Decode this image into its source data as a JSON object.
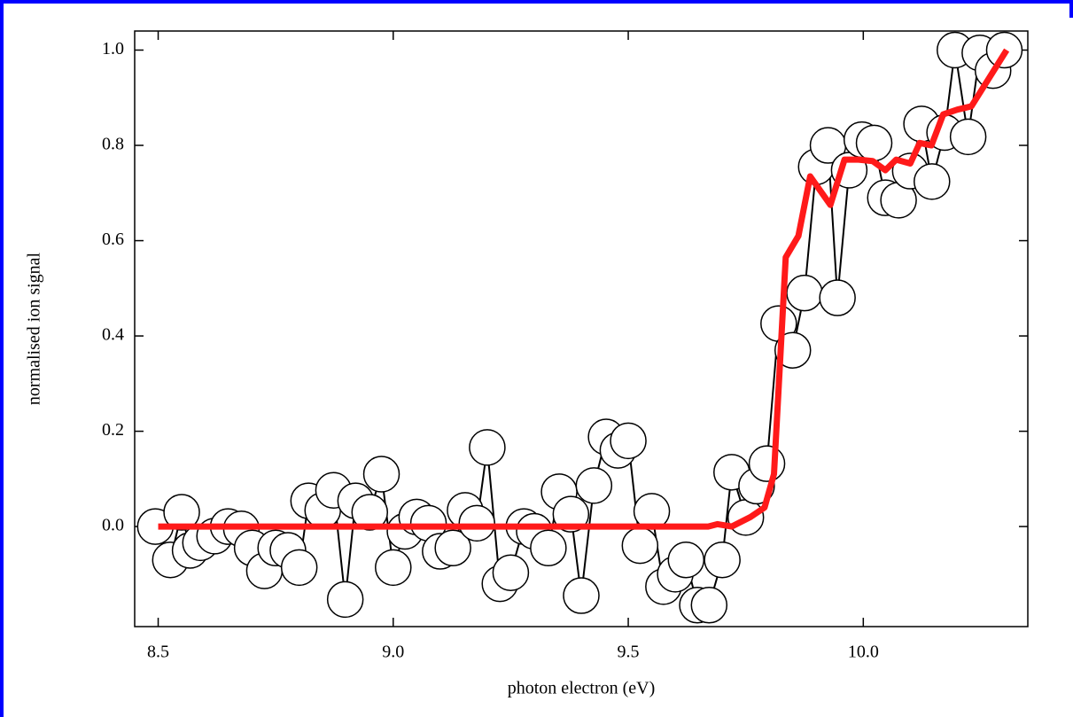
{
  "chart_data": {
    "type": "line",
    "xlabel": "photon electron (eV)",
    "ylabel": "normalised ion signal",
    "xlim": [
      8.45,
      10.35
    ],
    "ylim": [
      -0.21,
      1.04
    ],
    "xticks": [
      8.5,
      {
        "value": 9,
        "label": "9.0"
      },
      9.5,
      {
        "value": 10,
        "label": "10.0"
      }
    ],
    "yticks": [
      {
        "value": 0,
        "label": "0.0"
      },
      0.2,
      0.4,
      0.6,
      0.8,
      {
        "value": 1,
        "label": "1.0"
      }
    ],
    "series": [
      {
        "color": "#000000",
        "marker": "circle",
        "x": [
          8.494,
          8.526,
          8.55,
          8.568,
          8.59,
          8.62,
          8.649,
          8.677,
          8.7,
          8.726,
          8.75,
          8.776,
          8.8,
          8.82,
          8.85,
          8.873,
          8.898,
          8.92,
          8.95,
          8.975,
          9.0,
          9.025,
          9.05,
          9.075,
          9.1,
          9.127,
          9.153,
          9.178,
          9.2,
          9.227,
          9.25,
          9.278,
          9.3,
          9.33,
          9.353,
          9.378,
          9.4,
          9.427,
          9.453,
          9.478,
          9.5,
          9.525,
          9.55,
          9.575,
          9.6,
          9.623,
          9.647,
          9.672,
          9.7,
          9.72,
          9.75,
          9.773,
          9.795,
          9.82,
          9.85,
          9.875,
          9.9,
          9.925,
          9.945,
          9.97,
          9.997,
          10.023,
          10.047,
          10.075,
          10.1,
          10.124,
          10.146,
          10.173,
          10.195,
          10.223,
          10.248,
          10.276,
          10.3
        ],
        "values": [
          0.0,
          -0.07,
          0.03,
          -0.05,
          -0.034,
          -0.02,
          0.0,
          -0.005,
          -0.045,
          -0.093,
          -0.045,
          -0.05,
          -0.086,
          0.054,
          0.034,
          0.076,
          -0.153,
          0.054,
          0.03,
          0.11,
          -0.086,
          -0.01,
          0.02,
          0.007,
          -0.052,
          -0.045,
          0.034,
          0.007,
          0.166,
          -0.12,
          -0.097,
          0.0,
          -0.01,
          -0.045,
          0.073,
          0.026,
          -0.145,
          0.086,
          0.188,
          0.16,
          0.18,
          -0.04,
          0.032,
          -0.126,
          -0.1,
          -0.07,
          -0.165,
          -0.165,
          -0.07,
          0.114,
          0.019,
          0.085,
          0.132,
          0.426,
          0.37,
          0.49,
          0.755,
          0.8,
          0.48,
          0.748,
          0.812,
          0.805,
          0.69,
          0.685,
          0.746,
          0.845,
          0.724,
          0.827,
          1.0,
          0.818,
          0.994,
          0.957,
          1.0
        ]
      },
      {
        "color": "#ff1a1a",
        "x": [
          8.5,
          9.67,
          9.69,
          9.72,
          9.76,
          9.79,
          9.81,
          9.835,
          9.862,
          9.887,
          9.93,
          9.96,
          9.99,
          10.02,
          10.047,
          10.07,
          10.1,
          10.12,
          10.145,
          10.17,
          10.2,
          10.23,
          10.305
        ],
        "values": [
          0,
          0,
          0.005,
          0,
          0.02,
          0.04,
          0.11,
          0.565,
          0.61,
          0.735,
          0.675,
          0.77,
          0.77,
          0.767,
          0.748,
          0.77,
          0.762,
          0.805,
          0.8,
          0.865,
          0.875,
          0.882,
          1.0
        ]
      }
    ]
  }
}
